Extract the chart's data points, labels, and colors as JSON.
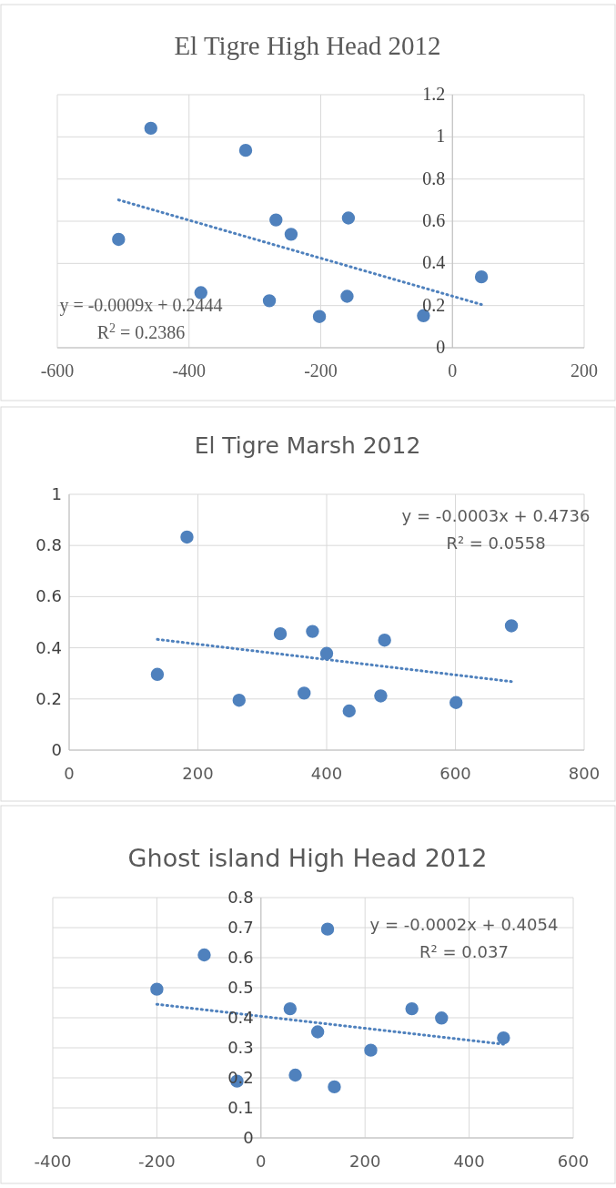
{
  "chart_data": [
    {
      "type": "scatter",
      "title": "El Tigre High Head 2012",
      "xlim": [
        -600,
        200
      ],
      "xticks": [
        -600,
        -400,
        -200,
        0,
        200
      ],
      "ylim": [
        0,
        1.2
      ],
      "yticks": [
        0,
        0.2,
        0.4,
        0.6,
        0.8,
        1,
        1.2
      ],
      "grid": true,
      "annotations": [
        "y = -0.0009x + 0.2444",
        "R$^{2}$ = 0.2386"
      ],
      "series": [
        {
          "marker": "circle",
          "color": "#4f81bd",
          "x": [
            -507,
            -458,
            -314,
            -268,
            -245,
            -158,
            -382,
            -278,
            -202,
            -160,
            -44,
            44
          ],
          "values": [
            0.514,
            1.041,
            0.936,
            0.606,
            0.538,
            0.615,
            0.261,
            0.223,
            0.148,
            0.244,
            0.152,
            0.336
          ]
        },
        {
          "type": "line",
          "marker": "none",
          "line_style": "dotted",
          "color": "#4f81bd",
          "x": [
            -507,
            44
          ],
          "values": [
            0.701,
            0.205
          ]
        }
      ]
    },
    {
      "type": "scatter",
      "title": "El Tigre Marsh 2012",
      "xlim": [
        0,
        800
      ],
      "xticks": [
        0,
        200,
        400,
        600,
        800
      ],
      "ylim": [
        0,
        1
      ],
      "yticks": [
        0,
        0.2,
        0.4,
        0.6,
        0.8,
        1
      ],
      "grid": true,
      "annotations": [
        "y = -0.0003x + 0.4736",
        "R² = 0.0558"
      ],
      "series": [
        {
          "marker": "circle",
          "color": "#4f81bd",
          "x": [
            183,
            137,
            264,
            328,
            378,
            365,
            400,
            435,
            490,
            484,
            601,
            687
          ],
          "values": [
            0.833,
            0.296,
            0.195,
            0.455,
            0.464,
            0.223,
            0.378,
            0.153,
            0.43,
            0.212,
            0.186,
            0.486
          ]
        },
        {
          "type": "line",
          "marker": "none",
          "line_style": "dotted",
          "color": "#4f81bd",
          "x": [
            137,
            687
          ],
          "values": [
            0.433,
            0.268
          ]
        }
      ]
    },
    {
      "type": "scatter",
      "title": "Ghost island High Head 2012",
      "xlim": [
        -400,
        600
      ],
      "xticks": [
        -400,
        -200,
        0,
        200,
        400,
        600
      ],
      "ylim": [
        0,
        0.8
      ],
      "yticks": [
        0,
        0.1,
        0.2,
        0.3,
        0.4,
        0.5,
        0.6,
        0.7,
        0.8
      ],
      "grid": true,
      "annotations": [
        "y = -0.0002x + 0.4054",
        "R² = 0.037"
      ],
      "series": [
        {
          "marker": "circle",
          "color": "#4f81bd",
          "x": [
            -200,
            -109,
            128,
            -46,
            56,
            66,
            109,
            141,
            211,
            290,
            347,
            466
          ],
          "values": [
            0.495,
            0.609,
            0.695,
            0.189,
            0.43,
            0.209,
            0.353,
            0.17,
            0.292,
            0.43,
            0.399,
            0.333
          ]
        },
        {
          "type": "line",
          "marker": "none",
          "line_style": "dotted",
          "color": "#4f81bd",
          "x": [
            -200,
            466
          ],
          "values": [
            0.445,
            0.312
          ]
        }
      ]
    }
  ]
}
